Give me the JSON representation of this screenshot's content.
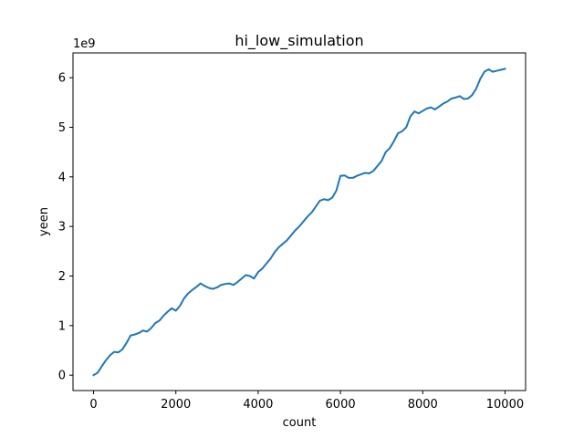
{
  "chart_data": {
    "type": "line",
    "title": "hi_low_simulation",
    "xlabel": "count",
    "ylabel": "yeen",
    "y_offset_label": "1e9",
    "xlim": [
      -500,
      10500
    ],
    "ylim": [
      -0.31,
      6.5
    ],
    "x_ticks": [
      0,
      2000,
      4000,
      6000,
      8000,
      10000
    ],
    "x_tick_labels": [
      "0",
      "2000",
      "4000",
      "6000",
      "8000",
      "10000"
    ],
    "y_ticks": [
      0,
      1,
      2,
      3,
      4,
      5,
      6
    ],
    "y_tick_labels": [
      "0",
      "1",
      "2",
      "3",
      "4",
      "5",
      "6"
    ],
    "grid": false,
    "series": [
      {
        "color": "#1f77b4",
        "x": [
          0,
          100,
          200,
          300,
          400,
          500,
          600,
          700,
          800,
          900,
          1000,
          1100,
          1200,
          1300,
          1400,
          1500,
          1600,
          1700,
          1800,
          1900,
          2000,
          2100,
          2200,
          2300,
          2400,
          2500,
          2600,
          2700,
          2800,
          2900,
          3000,
          3100,
          3200,
          3300,
          3400,
          3500,
          3600,
          3700,
          3800,
          3900,
          4000,
          4100,
          4200,
          4300,
          4400,
          4500,
          4600,
          4700,
          4800,
          4900,
          5000,
          5100,
          5200,
          5300,
          5400,
          5500,
          5600,
          5700,
          5800,
          5900,
          6000,
          6100,
          6200,
          6300,
          6400,
          6500,
          6600,
          6700,
          6800,
          6900,
          7000,
          7100,
          7200,
          7300,
          7400,
          7500,
          7600,
          7700,
          7800,
          7900,
          8000,
          8100,
          8200,
          8300,
          8400,
          8500,
          8600,
          8700,
          8800,
          8900,
          9000,
          9100,
          9200,
          9300,
          9400,
          9500,
          9600,
          9700,
          9800,
          9900,
          10000
        ],
        "y": [
          0.0,
          0.05,
          0.18,
          0.3,
          0.4,
          0.47,
          0.46,
          0.52,
          0.65,
          0.8,
          0.82,
          0.85,
          0.9,
          0.88,
          0.95,
          1.05,
          1.1,
          1.2,
          1.28,
          1.35,
          1.3,
          1.4,
          1.55,
          1.65,
          1.72,
          1.78,
          1.85,
          1.8,
          1.76,
          1.74,
          1.77,
          1.82,
          1.84,
          1.85,
          1.82,
          1.88,
          1.95,
          2.02,
          2.0,
          1.95,
          2.08,
          2.15,
          2.25,
          2.35,
          2.48,
          2.58,
          2.65,
          2.72,
          2.82,
          2.92,
          3.0,
          3.1,
          3.2,
          3.28,
          3.4,
          3.52,
          3.55,
          3.53,
          3.58,
          3.72,
          4.02,
          4.03,
          3.98,
          3.98,
          4.02,
          4.05,
          4.08,
          4.07,
          4.12,
          4.22,
          4.32,
          4.5,
          4.58,
          4.72,
          4.88,
          4.92,
          5.0,
          5.22,
          5.32,
          5.28,
          5.33,
          5.38,
          5.4,
          5.36,
          5.42,
          5.48,
          5.52,
          5.58,
          5.6,
          5.63,
          5.57,
          5.58,
          5.65,
          5.78,
          5.98,
          6.12,
          6.17,
          6.12,
          6.14,
          6.16,
          6.18
        ]
      }
    ]
  }
}
